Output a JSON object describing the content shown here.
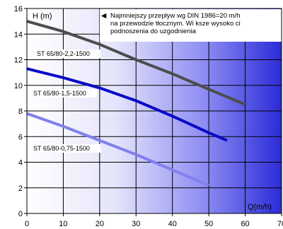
{
  "chart_data": {
    "type": "line",
    "xlabel": "Q(m/h)",
    "ylabel": "H (m)",
    "xlim": [
      0,
      70
    ],
    "ylim": [
      0,
      16
    ],
    "x_ticks": [
      "0",
      "10",
      "20",
      "30",
      "40",
      "50",
      "60",
      "70"
    ],
    "y_ticks": [
      "0",
      "2",
      "4",
      "6",
      "8",
      "10",
      "12",
      "14",
      "16"
    ],
    "grid": true,
    "annotation_lines": [
      "Najmniejszy przepływ wg DIN 1986=20 m/h",
      "na przewodzie tłocznym. Wi  ksze wysoko  ci",
      "podnoszenia do uzgodnienia"
    ],
    "annotation_marker": "◀",
    "series": [
      {
        "name": "ST 65/80-2,2-1500",
        "color": "#4d4d4d",
        "x": [
          0,
          10,
          20,
          30,
          40,
          50,
          60
        ],
        "y": [
          15.0,
          14.2,
          13.2,
          12.0,
          10.9,
          9.7,
          8.5
        ]
      },
      {
        "name": "ST 65/80-1,5-1500",
        "color": "#0a0ac8",
        "x": [
          0,
          10,
          20,
          30,
          40,
          50,
          55
        ],
        "y": [
          11.3,
          10.6,
          9.8,
          8.8,
          7.6,
          6.3,
          5.7
        ]
      },
      {
        "name": "ST 65/80-0,75-1500",
        "color": "#8080ee",
        "x": [
          0,
          10,
          20,
          30,
          40,
          50
        ],
        "y": [
          7.8,
          6.8,
          5.7,
          4.6,
          3.4,
          2.2
        ]
      }
    ]
  }
}
